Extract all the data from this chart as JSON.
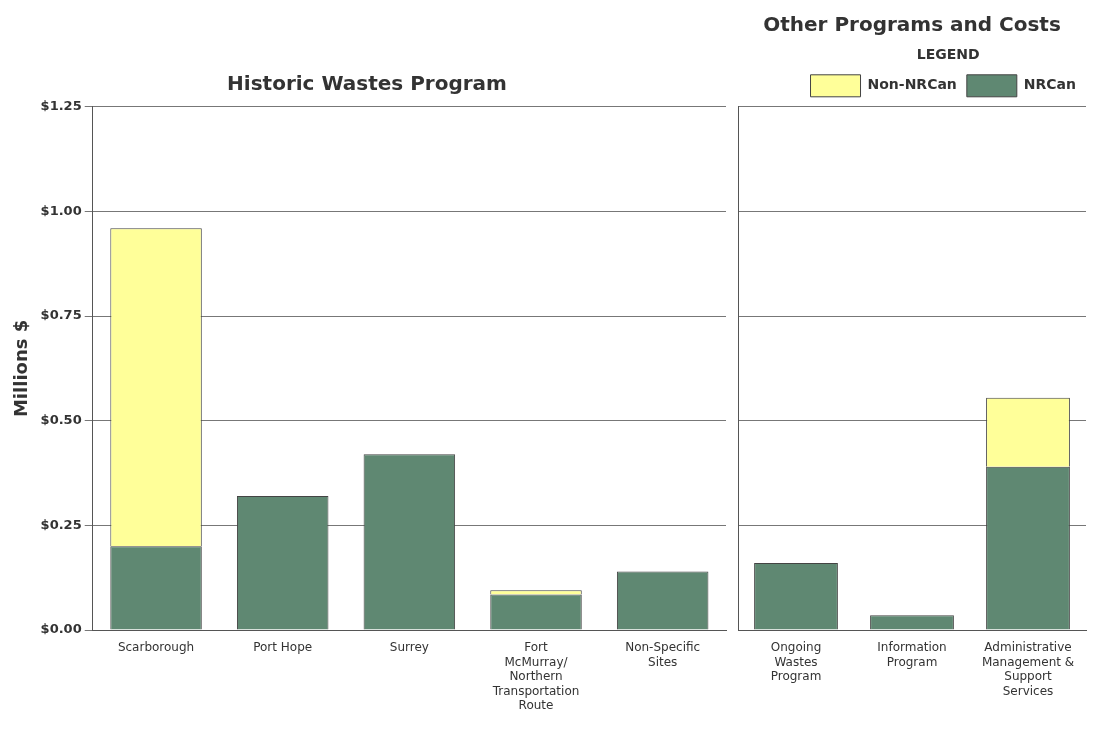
{
  "chart_data": [
    {
      "type": "bar",
      "title": "Historic Wastes Program",
      "ylabel": "Millions $",
      "stacked": true,
      "grid": "y",
      "categories": [
        "Scarborough",
        "Port Hope",
        "Surrey",
        "Fort McMurray/ Northern Transportation Route",
        "Non-Specific Sites"
      ],
      "series": [
        {
          "color": "#5f8872",
          "values": [
            0.2,
            0.32,
            0.42,
            0.085,
            0.14
          ]
        },
        {
          "color": "#ffff99",
          "values": [
            0.76,
            null,
            null,
            0.01,
            null
          ]
        }
      ],
      "ylim": [
        0,
        1.25
      ],
      "yticks": [
        {
          "value": 0,
          "label": "$0.00"
        },
        {
          "value": 0.25,
          "label": "$0.25"
        },
        {
          "value": 0.5,
          "label": "$0.50"
        },
        {
          "value": 0.75,
          "label": "$0.75"
        },
        {
          "value": 1,
          "label": "$1.00"
        },
        {
          "value": 1.25,
          "label": "$1.25"
        }
      ]
    },
    {
      "type": "bar",
      "title": "Other Programs and Costs",
      "legend_title": "LEGEND",
      "stacked": true,
      "grid": "y",
      "legend": "top right",
      "tick_labels": "x",
      "categories": [
        "Ongoing Wastes Program",
        "Information Program",
        "Administrative Management & Support Services"
      ],
      "series": [
        {
          "name": "NRCan",
          "color": "#5f8872",
          "values": [
            0.16,
            0.035,
            0.39
          ]
        },
        {
          "name": "Non-NRCan",
          "color": "#ffff99",
          "values": [
            null,
            null,
            0.165
          ]
        }
      ],
      "ylim": [
        0,
        1.25
      ],
      "yticks": [
        0,
        0.25,
        0.5,
        0.75,
        1,
        1.25
      ]
    }
  ]
}
